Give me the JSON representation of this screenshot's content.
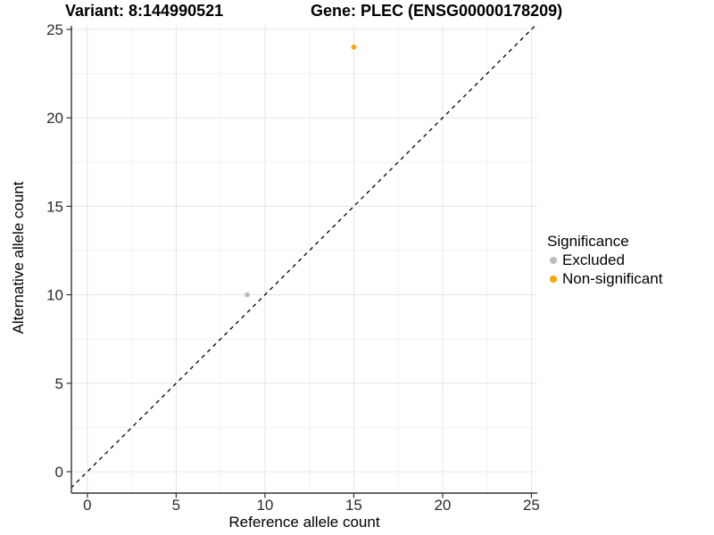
{
  "chart_data": {
    "type": "scatter",
    "title_left": "Variant: 8:144990521",
    "title_right": "Gene: PLEC (ENSG00000178209)",
    "xlabel": "Reference allele count",
    "ylabel": "Alternative allele count",
    "xticks": [
      0,
      5,
      10,
      15,
      20,
      25
    ],
    "yticks": [
      0,
      5,
      10,
      15,
      20,
      25
    ],
    "xlim": [
      -0.9,
      25.33
    ],
    "ylim": [
      -1.21,
      25.2
    ],
    "grid": true,
    "identity_line": {
      "slope": 1,
      "intercept": 0,
      "style": "dashed",
      "color": "#000000"
    },
    "legend": {
      "title": "Significance",
      "position": "right"
    },
    "series": [
      {
        "name": "Excluded",
        "color": "#bdbdbd",
        "points": [
          {
            "x": 9,
            "y": 10
          }
        ]
      },
      {
        "name": "Non-significant",
        "color": "#ffa500",
        "points": [
          {
            "x": 15,
            "y": 24
          }
        ]
      }
    ],
    "colors": {
      "grid_major": "#e4e4e4",
      "grid_minor": "#f1f1f1",
      "axis_line": "#333333",
      "tick_label": "#2b2b2b"
    }
  }
}
